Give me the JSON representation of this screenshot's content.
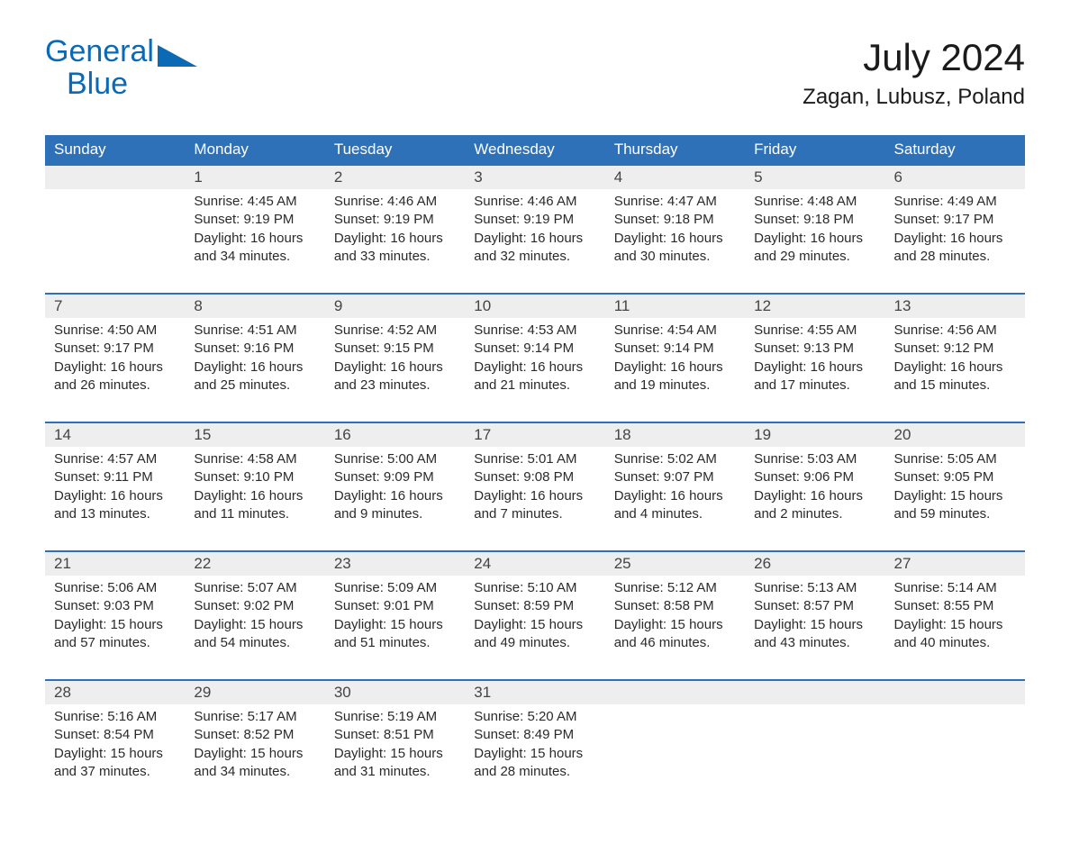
{
  "colors": {
    "brand_blue": "#0a6ab6",
    "header_bg": "#2f71b8",
    "header_text": "#ffffff",
    "daynum_bg": "#eeeeee",
    "daynum_border_top": "#2f71b8",
    "body_text": "#2a2a2a",
    "page_bg": "#ffffff"
  },
  "typography": {
    "title_month_fontsize": 42,
    "title_location_fontsize": 24,
    "header_cell_fontsize": 17,
    "daynum_fontsize": 17,
    "body_fontsize": 15
  },
  "logo": {
    "line1": "General",
    "line2": "Blue"
  },
  "title": {
    "month": "July 2024",
    "location": "Zagan, Lubusz, Poland"
  },
  "day_names": [
    "Sunday",
    "Monday",
    "Tuesday",
    "Wednesday",
    "Thursday",
    "Friday",
    "Saturday"
  ],
  "weeks": [
    {
      "nums": [
        "",
        "1",
        "2",
        "3",
        "4",
        "5",
        "6"
      ],
      "cells": [
        {
          "sunrise": "",
          "sunset": "",
          "daylight1": "",
          "daylight2": ""
        },
        {
          "sunrise": "Sunrise: 4:45 AM",
          "sunset": "Sunset: 9:19 PM",
          "daylight1": "Daylight: 16 hours",
          "daylight2": "and 34 minutes."
        },
        {
          "sunrise": "Sunrise: 4:46 AM",
          "sunset": "Sunset: 9:19 PM",
          "daylight1": "Daylight: 16 hours",
          "daylight2": "and 33 minutes."
        },
        {
          "sunrise": "Sunrise: 4:46 AM",
          "sunset": "Sunset: 9:19 PM",
          "daylight1": "Daylight: 16 hours",
          "daylight2": "and 32 minutes."
        },
        {
          "sunrise": "Sunrise: 4:47 AM",
          "sunset": "Sunset: 9:18 PM",
          "daylight1": "Daylight: 16 hours",
          "daylight2": "and 30 minutes."
        },
        {
          "sunrise": "Sunrise: 4:48 AM",
          "sunset": "Sunset: 9:18 PM",
          "daylight1": "Daylight: 16 hours",
          "daylight2": "and 29 minutes."
        },
        {
          "sunrise": "Sunrise: 4:49 AM",
          "sunset": "Sunset: 9:17 PM",
          "daylight1": "Daylight: 16 hours",
          "daylight2": "and 28 minutes."
        }
      ]
    },
    {
      "nums": [
        "7",
        "8",
        "9",
        "10",
        "11",
        "12",
        "13"
      ],
      "cells": [
        {
          "sunrise": "Sunrise: 4:50 AM",
          "sunset": "Sunset: 9:17 PM",
          "daylight1": "Daylight: 16 hours",
          "daylight2": "and 26 minutes."
        },
        {
          "sunrise": "Sunrise: 4:51 AM",
          "sunset": "Sunset: 9:16 PM",
          "daylight1": "Daylight: 16 hours",
          "daylight2": "and 25 minutes."
        },
        {
          "sunrise": "Sunrise: 4:52 AM",
          "sunset": "Sunset: 9:15 PM",
          "daylight1": "Daylight: 16 hours",
          "daylight2": "and 23 minutes."
        },
        {
          "sunrise": "Sunrise: 4:53 AM",
          "sunset": "Sunset: 9:14 PM",
          "daylight1": "Daylight: 16 hours",
          "daylight2": "and 21 minutes."
        },
        {
          "sunrise": "Sunrise: 4:54 AM",
          "sunset": "Sunset: 9:14 PM",
          "daylight1": "Daylight: 16 hours",
          "daylight2": "and 19 minutes."
        },
        {
          "sunrise": "Sunrise: 4:55 AM",
          "sunset": "Sunset: 9:13 PM",
          "daylight1": "Daylight: 16 hours",
          "daylight2": "and 17 minutes."
        },
        {
          "sunrise": "Sunrise: 4:56 AM",
          "sunset": "Sunset: 9:12 PM",
          "daylight1": "Daylight: 16 hours",
          "daylight2": "and 15 minutes."
        }
      ]
    },
    {
      "nums": [
        "14",
        "15",
        "16",
        "17",
        "18",
        "19",
        "20"
      ],
      "cells": [
        {
          "sunrise": "Sunrise: 4:57 AM",
          "sunset": "Sunset: 9:11 PM",
          "daylight1": "Daylight: 16 hours",
          "daylight2": "and 13 minutes."
        },
        {
          "sunrise": "Sunrise: 4:58 AM",
          "sunset": "Sunset: 9:10 PM",
          "daylight1": "Daylight: 16 hours",
          "daylight2": "and 11 minutes."
        },
        {
          "sunrise": "Sunrise: 5:00 AM",
          "sunset": "Sunset: 9:09 PM",
          "daylight1": "Daylight: 16 hours",
          "daylight2": "and 9 minutes."
        },
        {
          "sunrise": "Sunrise: 5:01 AM",
          "sunset": "Sunset: 9:08 PM",
          "daylight1": "Daylight: 16 hours",
          "daylight2": "and 7 minutes."
        },
        {
          "sunrise": "Sunrise: 5:02 AM",
          "sunset": "Sunset: 9:07 PM",
          "daylight1": "Daylight: 16 hours",
          "daylight2": "and 4 minutes."
        },
        {
          "sunrise": "Sunrise: 5:03 AM",
          "sunset": "Sunset: 9:06 PM",
          "daylight1": "Daylight: 16 hours",
          "daylight2": "and 2 minutes."
        },
        {
          "sunrise": "Sunrise: 5:05 AM",
          "sunset": "Sunset: 9:05 PM",
          "daylight1": "Daylight: 15 hours",
          "daylight2": "and 59 minutes."
        }
      ]
    },
    {
      "nums": [
        "21",
        "22",
        "23",
        "24",
        "25",
        "26",
        "27"
      ],
      "cells": [
        {
          "sunrise": "Sunrise: 5:06 AM",
          "sunset": "Sunset: 9:03 PM",
          "daylight1": "Daylight: 15 hours",
          "daylight2": "and 57 minutes."
        },
        {
          "sunrise": "Sunrise: 5:07 AM",
          "sunset": "Sunset: 9:02 PM",
          "daylight1": "Daylight: 15 hours",
          "daylight2": "and 54 minutes."
        },
        {
          "sunrise": "Sunrise: 5:09 AM",
          "sunset": "Sunset: 9:01 PM",
          "daylight1": "Daylight: 15 hours",
          "daylight2": "and 51 minutes."
        },
        {
          "sunrise": "Sunrise: 5:10 AM",
          "sunset": "Sunset: 8:59 PM",
          "daylight1": "Daylight: 15 hours",
          "daylight2": "and 49 minutes."
        },
        {
          "sunrise": "Sunrise: 5:12 AM",
          "sunset": "Sunset: 8:58 PM",
          "daylight1": "Daylight: 15 hours",
          "daylight2": "and 46 minutes."
        },
        {
          "sunrise": "Sunrise: 5:13 AM",
          "sunset": "Sunset: 8:57 PM",
          "daylight1": "Daylight: 15 hours",
          "daylight2": "and 43 minutes."
        },
        {
          "sunrise": "Sunrise: 5:14 AM",
          "sunset": "Sunset: 8:55 PM",
          "daylight1": "Daylight: 15 hours",
          "daylight2": "and 40 minutes."
        }
      ]
    },
    {
      "nums": [
        "28",
        "29",
        "30",
        "31",
        "",
        "",
        ""
      ],
      "cells": [
        {
          "sunrise": "Sunrise: 5:16 AM",
          "sunset": "Sunset: 8:54 PM",
          "daylight1": "Daylight: 15 hours",
          "daylight2": "and 37 minutes."
        },
        {
          "sunrise": "Sunrise: 5:17 AM",
          "sunset": "Sunset: 8:52 PM",
          "daylight1": "Daylight: 15 hours",
          "daylight2": "and 34 minutes."
        },
        {
          "sunrise": "Sunrise: 5:19 AM",
          "sunset": "Sunset: 8:51 PM",
          "daylight1": "Daylight: 15 hours",
          "daylight2": "and 31 minutes."
        },
        {
          "sunrise": "Sunrise: 5:20 AM",
          "sunset": "Sunset: 8:49 PM",
          "daylight1": "Daylight: 15 hours",
          "daylight2": "and 28 minutes."
        },
        {
          "sunrise": "",
          "sunset": "",
          "daylight1": "",
          "daylight2": ""
        },
        {
          "sunrise": "",
          "sunset": "",
          "daylight1": "",
          "daylight2": ""
        },
        {
          "sunrise": "",
          "sunset": "",
          "daylight1": "",
          "daylight2": ""
        }
      ]
    }
  ]
}
